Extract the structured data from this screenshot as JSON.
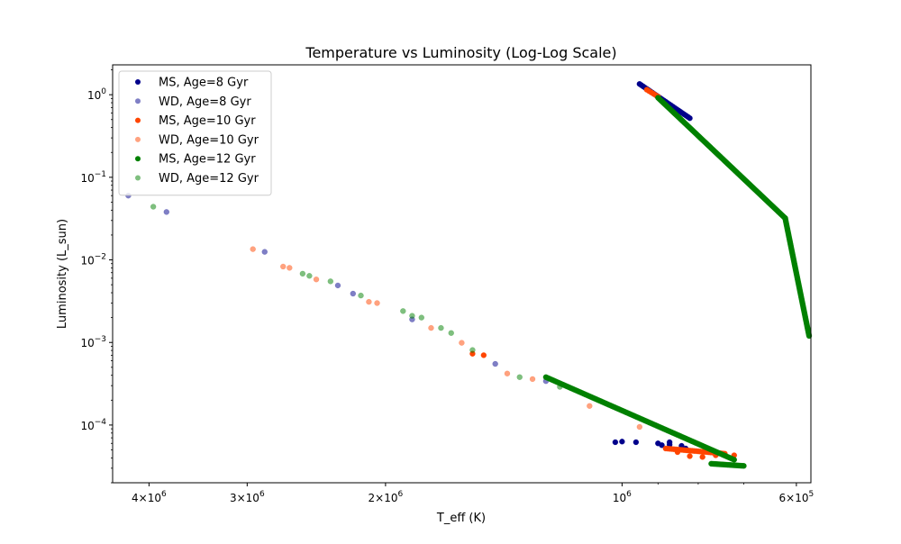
{
  "chart_data": {
    "type": "scatter",
    "title": "Temperature vs Luminosity (Log-Log Scale)",
    "xlabel": "T_eff (K)",
    "ylabel": "Luminosity (L_sun)",
    "x_scale": "log",
    "y_scale": "log",
    "x_inverted": true,
    "xlim": [
      4450000,
      575000
    ],
    "ylim": [
      2e-05,
      2.3
    ],
    "grid": false,
    "legend_position": "upper left",
    "x_ticks": [
      {
        "value": 4000000,
        "mant": "4",
        "exp": "6"
      },
      {
        "value": 3000000,
        "mant": "3",
        "exp": "6"
      },
      {
        "value": 2000000,
        "mant": "2",
        "exp": "6"
      },
      {
        "value": 1000000,
        "mant": "",
        "exp": "6"
      },
      {
        "value": 600000,
        "mant": "6",
        "exp": "5"
      }
    ],
    "y_ticks": [
      {
        "value": 1,
        "exp": "0"
      },
      {
        "value": 0.1,
        "exp": "−1"
      },
      {
        "value": 0.01,
        "exp": "−2"
      },
      {
        "value": 0.001,
        "exp": "−3"
      },
      {
        "value": 0.0001,
        "exp": "−4"
      }
    ],
    "series": [
      {
        "name": "MS, Age=8 Gyr",
        "color": "#00008b",
        "alpha": 1.0,
        "segments": [
          {
            "from": [
              950000,
              1.35
            ],
            "to": [
              820000,
              0.52
            ],
            "n": 28
          }
        ],
        "points": [
          [
            1020000,
            6.2e-05
          ],
          [
            1000000,
            6.3e-05
          ],
          [
            960000,
            6.2e-05
          ],
          [
            900000,
            6e-05
          ],
          [
            870000,
            5.8e-05
          ],
          [
            840000,
            5.6e-05
          ],
          [
            870000,
            6.2e-05
          ],
          [
            890000,
            5.7e-05
          ],
          [
            830000,
            5.2e-05
          ]
        ]
      },
      {
        "name": "WD, Age=8 Gyr",
        "color": "#00008b",
        "alpha": 0.5,
        "segments": [],
        "points": [
          [
            4250000,
            0.06
          ],
          [
            3800000,
            0.038
          ],
          [
            2850000,
            0.0125
          ],
          [
            2300000,
            0.0049
          ],
          [
            2200000,
            0.0039
          ],
          [
            1850000,
            0.0019
          ],
          [
            1450000,
            0.00055
          ],
          [
            1250000,
            0.00034
          ]
        ]
      },
      {
        "name": "MS, Age=10 Gyr",
        "color": "#ff4500",
        "alpha": 1.0,
        "segments": [
          {
            "from": [
              930000,
              1.15
            ],
            "to": [
              900000,
              0.95
            ],
            "n": 6
          },
          {
            "from": [
              880000,
              5.2e-05
            ],
            "to": [
              740000,
              4.5e-05
            ],
            "n": 30
          }
        ],
        "points": [
          [
            1550000,
            0.00073
          ],
          [
            1500000,
            0.0007
          ],
          [
            820000,
            4.2e-05
          ],
          [
            790000,
            4.1e-05
          ],
          [
            760000,
            4.3e-05
          ],
          [
            720000,
            4.3e-05
          ],
          [
            850000,
            4.7e-05
          ]
        ]
      },
      {
        "name": "WD, Age=10 Gyr",
        "color": "#ff4500",
        "alpha": 0.5,
        "segments": [],
        "points": [
          [
            2950000,
            0.0135
          ],
          [
            2700000,
            0.0083
          ],
          [
            2650000,
            0.008
          ],
          [
            2450000,
            0.0058
          ],
          [
            2050000,
            0.003
          ],
          [
            2100000,
            0.0031
          ],
          [
            1750000,
            0.0015
          ],
          [
            1600000,
            0.00099
          ],
          [
            1400000,
            0.00042
          ],
          [
            1300000,
            0.00036
          ],
          [
            1100000,
            0.00017
          ],
          [
            950000,
            9.5e-05
          ]
        ]
      },
      {
        "name": "MS, Age=12 Gyr",
        "color": "#008000",
        "alpha": 1.0,
        "segments": [
          {
            "from": [
              900000,
              0.92
            ],
            "to": [
              620000,
              0.032
            ],
            "n": 130
          },
          {
            "from": [
              620000,
              0.032
            ],
            "to": [
              578000,
              0.0012
            ],
            "n": 85
          },
          {
            "from": [
              1250000,
              0.00038
            ],
            "to": [
              720000,
              3.8e-05
            ],
            "n": 130
          },
          {
            "from": [
              770000,
              3.4e-05
            ],
            "to": [
              700000,
              3.2e-05
            ],
            "n": 25
          }
        ],
        "points": []
      },
      {
        "name": "WD, Age=12 Gyr",
        "color": "#008000",
        "alpha": 0.5,
        "segments": [],
        "points": [
          [
            3950000,
            0.044
          ],
          [
            2550000,
            0.0068
          ],
          [
            2500000,
            0.0064
          ],
          [
            2350000,
            0.0055
          ],
          [
            2150000,
            0.0037
          ],
          [
            1900000,
            0.0024
          ],
          [
            1850000,
            0.0021
          ],
          [
            1800000,
            0.002
          ],
          [
            1700000,
            0.0015
          ],
          [
            1650000,
            0.0013
          ],
          [
            1550000,
            0.00081
          ],
          [
            1350000,
            0.00038
          ],
          [
            1200000,
            0.00029
          ]
        ]
      }
    ]
  }
}
